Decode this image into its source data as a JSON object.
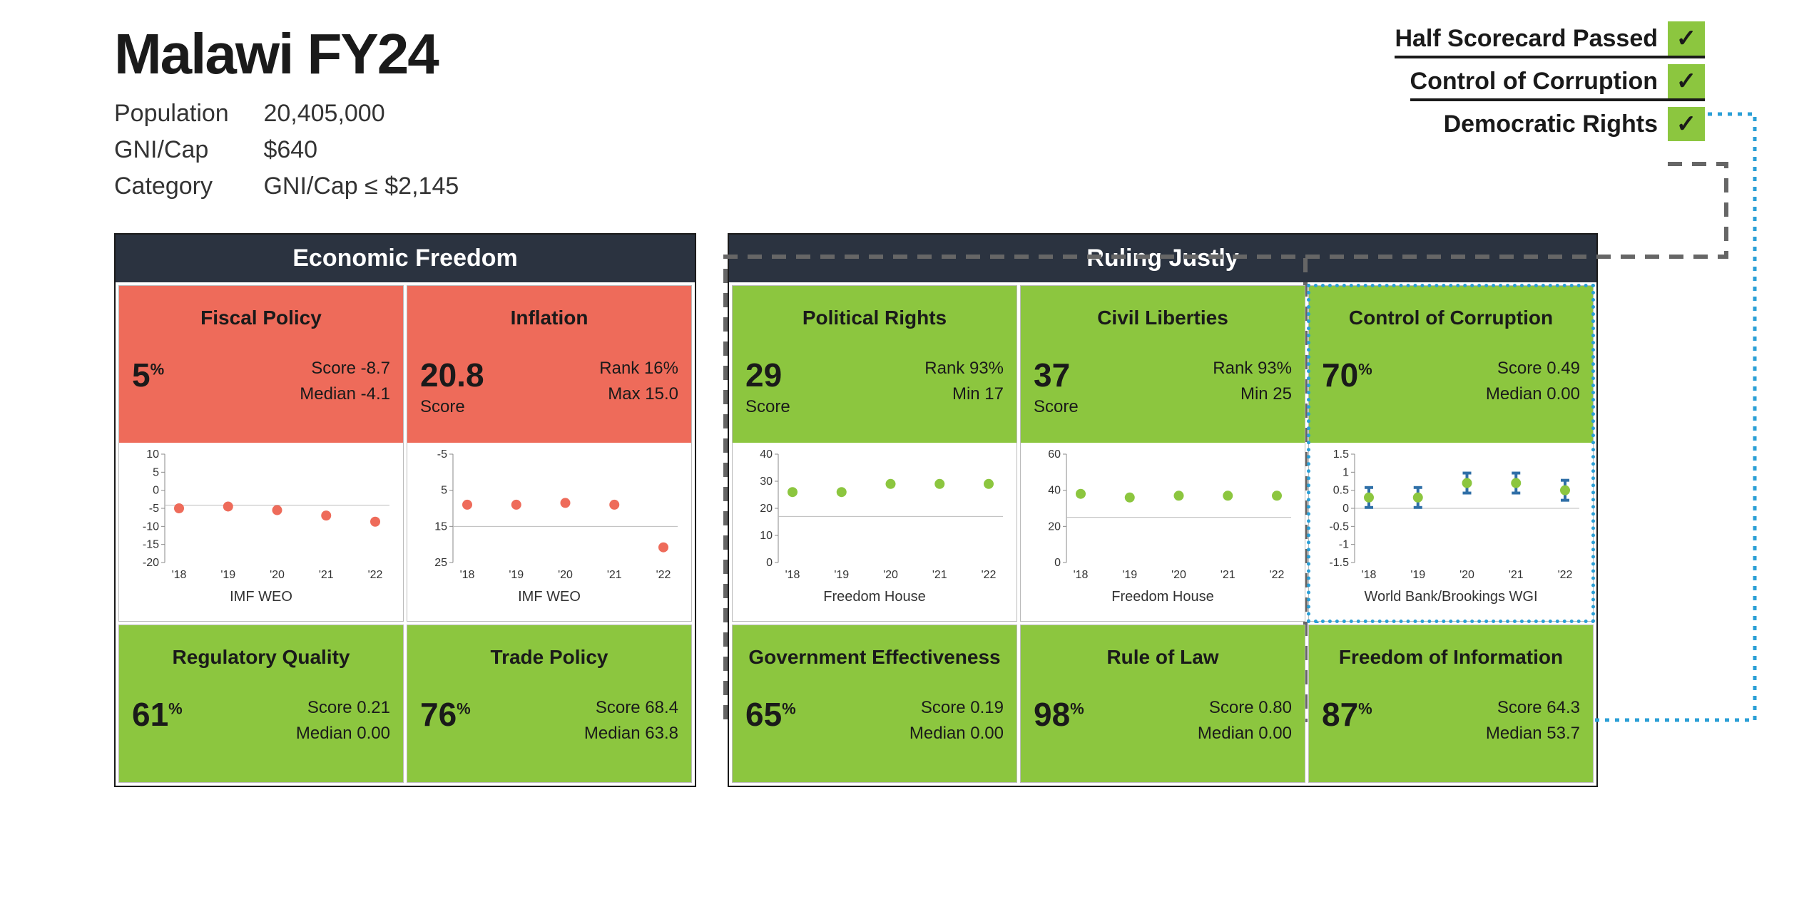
{
  "colors": {
    "pass": "#8cc63f",
    "fail": "#ee6b5a",
    "header_bg": "#2b3340",
    "chart_point_red": "#ee6b5a",
    "chart_point_green": "#8cc63f",
    "chart_point_blue": "#2f6fa7",
    "chart_axis": "#888",
    "chart_grid": "#bbb",
    "dash_grey": "#666",
    "dash_blue": "#2a9fd6"
  },
  "header": {
    "title": "Malawi FY24",
    "population_label": "Population",
    "population_value": "20,405,000",
    "gni_label": "GNI/Cap",
    "gni_value": "$640",
    "category_label": "Category",
    "category_value": "GNI/Cap  ≤  $2,145"
  },
  "checks": [
    {
      "label": "Half Scorecard Passed",
      "pass": true,
      "underline": true
    },
    {
      "label": "Control of Corruption",
      "pass": true,
      "underline": true
    },
    {
      "label": "Democratic Rights",
      "pass": true,
      "underline": false
    }
  ],
  "sections": [
    {
      "title": "Economic Freedom",
      "grid_class": "econ",
      "cards": [
        {
          "title": "Fiscal Policy",
          "status": "fail",
          "main_value": "5",
          "main_unit": "%",
          "main_caption": "",
          "stat1_label": "Score",
          "stat1_value": "-8.7",
          "stat2_label": "Median",
          "stat2_value": "-4.1",
          "chart": {
            "x_labels": [
              "'18",
              "'19",
              "'20",
              "'21",
              "'22"
            ],
            "y_ticks": [
              10,
              5,
              0,
              -5,
              -10,
              -15,
              -20
            ],
            "ymin": -20,
            "ymax": 10,
            "baseline": -4.1,
            "values": [
              -5,
              -4.5,
              -5.5,
              -7,
              -8.7
            ],
            "point_color": "#ee6b5a",
            "source": "IMF WEO"
          }
        },
        {
          "title": "Inflation",
          "status": "fail",
          "main_value": "20.8",
          "main_unit": "",
          "main_caption": "Score",
          "stat1_label": "Rank",
          "stat1_value": "16%",
          "stat2_label": "Max",
          "stat2_value": "15.0",
          "chart": {
            "x_labels": [
              "'18",
              "'19",
              "'20",
              "'21",
              "'22"
            ],
            "y_ticks": [
              -5,
              5,
              15,
              25
            ],
            "ymin": -5,
            "ymax": 25,
            "baseline": 15,
            "inverted": true,
            "values": [
              9,
              9,
              8.5,
              9,
              20.8
            ],
            "point_color": "#ee6b5a",
            "source": "IMF WEO"
          }
        },
        {
          "title": "Regulatory Quality",
          "status": "pass",
          "main_value": "61",
          "main_unit": "%",
          "main_caption": "",
          "stat1_label": "Score",
          "stat1_value": "0.21",
          "stat2_label": "Median",
          "stat2_value": "0.00",
          "no_chart": true
        },
        {
          "title": "Trade Policy",
          "status": "pass",
          "main_value": "76",
          "main_unit": "%",
          "main_caption": "",
          "stat1_label": "Score",
          "stat1_value": "68.4",
          "stat2_label": "Median",
          "stat2_value": "63.8",
          "no_chart": true
        }
      ]
    },
    {
      "title": "Ruling Justly",
      "grid_class": "ruling",
      "cards": [
        {
          "title": "Political Rights",
          "status": "pass",
          "main_value": "29",
          "main_unit": "",
          "main_caption": "Score",
          "stat1_label": "Rank",
          "stat1_value": "93%",
          "stat2_label": "Min",
          "stat2_value": "17",
          "chart": {
            "x_labels": [
              "'18",
              "'19",
              "'20",
              "'21",
              "'22"
            ],
            "y_ticks": [
              40,
              30,
              20,
              10,
              0
            ],
            "ymin": 0,
            "ymax": 40,
            "baseline": 17,
            "values": [
              26,
              26,
              29,
              29,
              29
            ],
            "point_color": "#8cc63f",
            "source": "Freedom House"
          }
        },
        {
          "title": "Civil Liberties",
          "status": "pass",
          "main_value": "37",
          "main_unit": "",
          "main_caption": "Score",
          "stat1_label": "Rank",
          "stat1_value": "93%",
          "stat2_label": "Min",
          "stat2_value": "25",
          "chart": {
            "x_labels": [
              "'18",
              "'19",
              "'20",
              "'21",
              "'22"
            ],
            "y_ticks": [
              60,
              40,
              20,
              0
            ],
            "ymin": 0,
            "ymax": 60,
            "baseline": 25,
            "values": [
              38,
              36,
              37,
              37,
              37
            ],
            "point_color": "#8cc63f",
            "source": "Freedom House"
          }
        },
        {
          "title": "Control of Corruption",
          "status": "pass",
          "main_value": "70",
          "main_unit": "%",
          "main_caption": "",
          "stat1_label": "Score",
          "stat1_value": "0.49",
          "stat2_label": "Median",
          "stat2_value": "0.00",
          "blue_outline": true,
          "chart": {
            "x_labels": [
              "'18",
              "'19",
              "'20",
              "'21",
              "'22"
            ],
            "y_ticks": [
              1.5,
              1,
              0.5,
              0,
              -0.5,
              -1,
              -1.5
            ],
            "ymin": -1.5,
            "ymax": 1.5,
            "baseline": 0,
            "values": [
              0.3,
              0.3,
              0.7,
              0.7,
              0.5
            ],
            "point_color": "#8cc63f",
            "error_color": "#2f6fa7",
            "source": "World Bank/Brookings WGI"
          }
        },
        {
          "title": "Government Effectiveness",
          "status": "pass",
          "main_value": "65",
          "main_unit": "%",
          "main_caption": "",
          "stat1_label": "Score",
          "stat1_value": "0.19",
          "stat2_label": "Median",
          "stat2_value": "0.00",
          "no_chart": true
        },
        {
          "title": "Rule of Law",
          "status": "pass",
          "main_value": "98",
          "main_unit": "%",
          "main_caption": "",
          "stat1_label": "Score",
          "stat1_value": "0.80",
          "stat2_label": "Median",
          "stat2_value": "0.00",
          "no_chart": true
        },
        {
          "title": "Freedom of Information",
          "status": "pass",
          "main_value": "87",
          "main_unit": "%",
          "main_caption": "",
          "stat1_label": "Score",
          "stat1_value": "64.3",
          "stat2_label": "Median",
          "stat2_value": "53.7",
          "no_chart": true
        }
      ]
    }
  ]
}
